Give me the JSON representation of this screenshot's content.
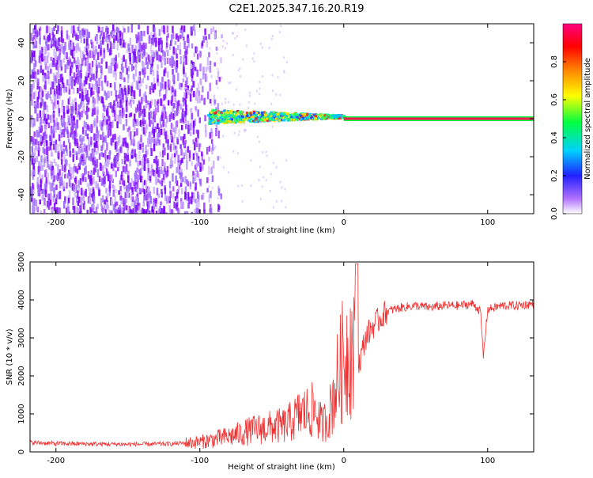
{
  "title": "C2E1.2025.347.16.20.R19",
  "chart_data": [
    {
      "type": "heatmap",
      "title": "C2E1.2025.347.16.20.R19",
      "xlabel": "Height of straight line (km)",
      "ylabel": "Frequency (Hz)",
      "xlim": [
        -218,
        132
      ],
      "ylim": [
        -50,
        50
      ],
      "xticks": [
        -200,
        -100,
        0,
        100
      ],
      "yticks": [
        -40,
        -20,
        0,
        20,
        40
      ],
      "colorbar": {
        "label": "Normalized spectral amplitude",
        "range": [
          0,
          1
        ],
        "ticks": [
          0.0,
          0.2,
          0.4,
          0.6,
          0.8
        ],
        "colormap": [
          "#ffffff",
          "#9000ff",
          "#2020ff",
          "#00e0ff",
          "#00ff40",
          "#ffff00",
          "#ff8000",
          "#ff0000",
          "#ff0080"
        ]
      },
      "regions": [
        {
          "name": "noise",
          "x": [
            -218,
            -95
          ],
          "y": [
            -50,
            50
          ],
          "amplitude": [
            0.15,
            0.25
          ]
        },
        {
          "name": "signal-spread",
          "x": [
            -95,
            0
          ],
          "y": [
            -3,
            4
          ],
          "amplitude": [
            0.3,
            0.85
          ]
        },
        {
          "name": "carrier-line",
          "x": [
            0,
            132
          ],
          "y": [
            -1,
            1
          ],
          "amplitude": [
            0.9,
            1.0
          ]
        }
      ]
    },
    {
      "type": "line",
      "xlabel": "Height of straight line (km)",
      "ylabel": "SNR (10 * v/v)",
      "xlim": [
        -218,
        132
      ],
      "ylim": [
        0,
        5000
      ],
      "xticks": [
        -200,
        -100,
        0,
        100
      ],
      "yticks": [
        0,
        1000,
        2000,
        3000,
        4000,
        5000
      ],
      "series": [
        {
          "name": "SNR",
          "color": "#f03030",
          "x": [
            -218,
            -200,
            -150,
            -120,
            -100,
            -80,
            -60,
            -40,
            -30,
            -20,
            -15,
            -10,
            -5,
            0,
            5,
            10,
            15,
            20,
            25,
            30,
            40,
            50,
            60,
            70,
            80,
            90,
            95,
            97,
            100,
            110,
            120,
            132
          ],
          "y": [
            250,
            220,
            200,
            210,
            260,
            400,
            600,
            700,
            1000,
            1100,
            700,
            1000,
            1800,
            2500,
            2800,
            2200,
            3000,
            3300,
            3500,
            3700,
            3800,
            3850,
            3800,
            3850,
            3850,
            3900,
            3700,
            2500,
            3750,
            3850,
            3850,
            3900
          ]
        }
      ]
    }
  ]
}
